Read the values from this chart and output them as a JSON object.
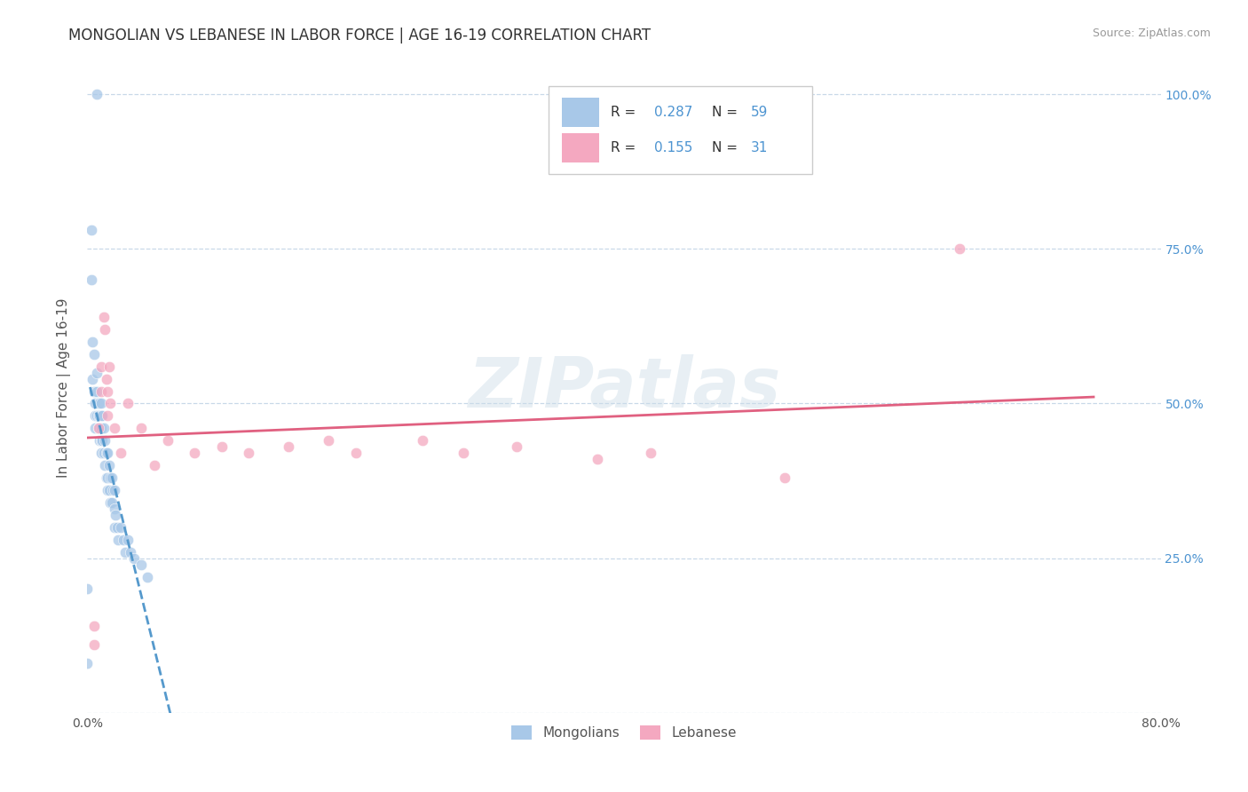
{
  "title": "MONGOLIAN VS LEBANESE IN LABOR FORCE | AGE 16-19 CORRELATION CHART",
  "source": "Source: ZipAtlas.com",
  "ylabel": "In Labor Force | Age 16-19",
  "xlim": [
    0.0,
    0.8
  ],
  "ylim": [
    0.0,
    1.05
  ],
  "mongolian_color": "#a8c8e8",
  "lebanese_color": "#f4a8c0",
  "trend_mongolian_color": "#5599cc",
  "trend_lebanese_color": "#e06080",
  "watermark": "ZIPatlas",
  "mongolian_x": [
    0.007,
    0.0,
    0.003,
    0.003,
    0.004,
    0.004,
    0.005,
    0.005,
    0.006,
    0.006,
    0.006,
    0.007,
    0.007,
    0.007,
    0.008,
    0.008,
    0.008,
    0.009,
    0.009,
    0.009,
    0.009,
    0.01,
    0.01,
    0.01,
    0.01,
    0.01,
    0.011,
    0.011,
    0.012,
    0.012,
    0.013,
    0.013,
    0.014,
    0.014,
    0.015,
    0.015,
    0.015,
    0.016,
    0.016,
    0.017,
    0.017,
    0.018,
    0.018,
    0.019,
    0.02,
    0.02,
    0.02,
    0.021,
    0.022,
    0.023,
    0.025,
    0.027,
    0.028,
    0.03,
    0.032,
    0.035,
    0.04,
    0.045,
    0.0
  ],
  "mongolian_y": [
    1.0,
    0.08,
    0.78,
    0.7,
    0.6,
    0.54,
    0.58,
    0.52,
    0.5,
    0.48,
    0.46,
    0.55,
    0.52,
    0.48,
    0.5,
    0.48,
    0.46,
    0.5,
    0.48,
    0.46,
    0.44,
    0.5,
    0.48,
    0.46,
    0.44,
    0.42,
    0.48,
    0.44,
    0.46,
    0.42,
    0.44,
    0.4,
    0.42,
    0.38,
    0.42,
    0.38,
    0.36,
    0.4,
    0.36,
    0.38,
    0.34,
    0.38,
    0.34,
    0.36,
    0.36,
    0.33,
    0.3,
    0.32,
    0.3,
    0.28,
    0.3,
    0.28,
    0.26,
    0.28,
    0.26,
    0.25,
    0.24,
    0.22,
    0.2
  ],
  "lebanese_x": [
    0.005,
    0.005,
    0.008,
    0.01,
    0.01,
    0.012,
    0.013,
    0.014,
    0.015,
    0.015,
    0.016,
    0.017,
    0.02,
    0.025,
    0.03,
    0.04,
    0.05,
    0.06,
    0.08,
    0.1,
    0.12,
    0.15,
    0.18,
    0.2,
    0.25,
    0.28,
    0.32,
    0.38,
    0.42,
    0.52,
    0.65
  ],
  "lebanese_y": [
    0.14,
    0.11,
    0.46,
    0.52,
    0.56,
    0.64,
    0.62,
    0.54,
    0.52,
    0.48,
    0.56,
    0.5,
    0.46,
    0.42,
    0.5,
    0.46,
    0.4,
    0.44,
    0.42,
    0.43,
    0.42,
    0.43,
    0.44,
    0.42,
    0.44,
    0.42,
    0.43,
    0.41,
    0.42,
    0.38,
    0.75
  ],
  "tick_fontsize": 10,
  "scatter_size": 80,
  "scatter_alpha": 0.75
}
